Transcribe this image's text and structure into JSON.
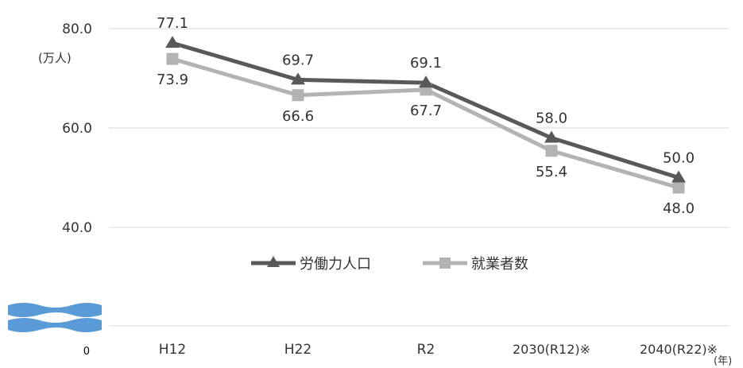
{
  "chart_data": {
    "type": "line",
    "categories": [
      "H12",
      "H22",
      "R2",
      "2030(R12)※",
      "2040(R22)※"
    ],
    "series": [
      {
        "name": "労働力人口",
        "values": [
          77.1,
          69.7,
          69.1,
          58.0,
          50.0
        ],
        "color": "#595959",
        "marker": "triangle"
      },
      {
        "name": "就業者数",
        "values": [
          73.9,
          66.6,
          67.7,
          55.4,
          48.0
        ],
        "color": "#b3b3b3",
        "marker": "square"
      }
    ],
    "y_ticks": [
      "80.0",
      "60.0",
      "40.0"
    ],
    "y_tick_values": [
      80,
      60,
      40
    ],
    "y_zero_label": "0",
    "ylabel": "(万人)",
    "xlabel": "(年)",
    "ylim": [
      40,
      80
    ],
    "axis_break": true,
    "grid": true,
    "legend_position": "inside-center"
  }
}
